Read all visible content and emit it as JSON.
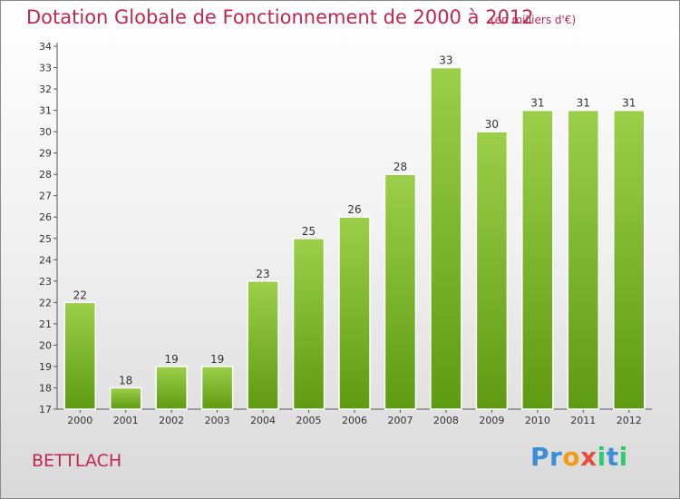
{
  "header": {
    "title": "Dotation Globale de Fonctionnement de 2000 à 2012",
    "subtitle": "(en milliers d'€)"
  },
  "commune": "BETTLACH",
  "logo": {
    "letters": [
      {
        "char": "P",
        "color": "#3a8fd6"
      },
      {
        "char": "r",
        "color": "#3a8fd6"
      },
      {
        "char": "o",
        "color": "#f39c12"
      },
      {
        "char": "x",
        "color": "#e74c3c"
      },
      {
        "char": "i",
        "color": "#2ecc71"
      },
      {
        "char": "t",
        "color": "#3a8fd6"
      },
      {
        "char": "i",
        "color": "#2ecc71"
      }
    ]
  },
  "colors": {
    "bar_top": "#9ccf4a",
    "bar_bottom": "#5e9a12",
    "accent": "#c0264e"
  },
  "chart_data": {
    "type": "bar",
    "categories": [
      "2000",
      "2001",
      "2002",
      "2003",
      "2004",
      "2005",
      "2006",
      "2007",
      "2008",
      "2009",
      "2010",
      "2011",
      "2012"
    ],
    "values": [
      22,
      18,
      19,
      19,
      23,
      25,
      26,
      28,
      33,
      30,
      31,
      31,
      31
    ],
    "ylim": [
      17,
      34
    ],
    "yticks": [
      17,
      18,
      19,
      20,
      21,
      22,
      23,
      24,
      25,
      26,
      27,
      28,
      29,
      30,
      31,
      32,
      33,
      34
    ],
    "grid": false,
    "data_labels": true
  }
}
